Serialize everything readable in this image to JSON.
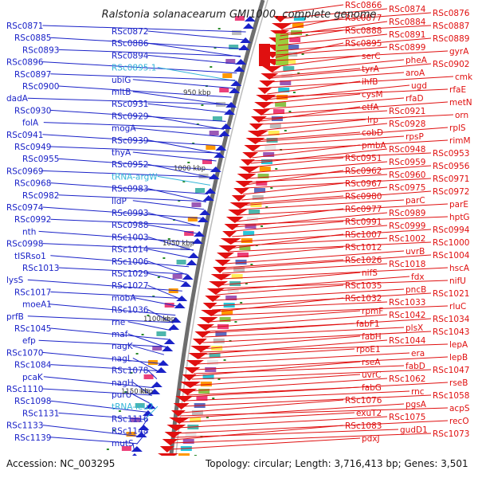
{
  "title": "Ralstonia solanacearum GMI1000, complete genome",
  "footer": {
    "accession": "Accession: NC_003295",
    "summary": "Topology: circular; Length: 3,716,413 bp; Genes: 3,501"
  },
  "colors": {
    "left_gene": "#1a22c8",
    "left_rna": "#33b5d8",
    "right_gene": "#e01010",
    "axis": "#8a8a8a",
    "tick_dot": "#2a8a2a"
  },
  "scale_labels": [
    "950 kbp",
    "1000 kbp",
    "1050 kbp",
    "1100 kbp",
    "1150 kbp"
  ],
  "left_labels": [
    "RSc0871",
    "RSc0872",
    "RSc0885",
    "RSc0886",
    "RSc0893",
    "RSc0894",
    "RSc0896",
    "RSc0895.1",
    "RSc0897",
    "ubiG",
    "RSc0900",
    "mltB",
    "dadA",
    "RSc0931",
    "RSc0930",
    "RSc0929",
    "folA",
    "mogA",
    "RSc0941",
    "RSc0939",
    "RSc0949",
    "thyA",
    "RSc0955",
    "RSc0952",
    "RSc0969",
    "tRNA-argW",
    "RSc0968",
    "RSc0983",
    "RSc0982",
    "lldP",
    "RSc0974",
    "RSc0993",
    "RSc0992",
    "RSc0988",
    "nth",
    "RSc1003",
    "RSc0998",
    "RSc1014",
    "tISRso1",
    "RSc1006",
    "RSc1013",
    "RSc1029",
    "lysS",
    "RSc1027",
    "RSc1017",
    "mobA",
    "moeA1",
    "RSc1036",
    "prfB",
    "rne",
    "RSc1045",
    "maf",
    "efp",
    "nagK",
    "RSc1070",
    "nagL",
    "RSc1084",
    "RSc1078",
    "pcaK",
    "nagH",
    "RSc1110",
    "purU",
    "RSc1098",
    "tRNA-leu2",
    "RSc1131",
    "RSc1116",
    "RSc1133",
    "RSc1148",
    "RSc1139",
    "mutS"
  ],
  "right_labels": [
    "RSc0866",
    "RSc0874",
    "RSc0876",
    "RSc0877",
    "RSc0884",
    "RSc0887",
    "RSc0888",
    "RSc0891",
    "RSc0889",
    "RSc0895",
    "RSc0899",
    "gyrA",
    "serC",
    "pheA",
    "RSc0902",
    "tyrA",
    "aroA",
    "cmk",
    "ihfB",
    "ugd",
    "rfaE",
    "cysM",
    "rfaD",
    "metN",
    "etfA",
    "RSc0921",
    "orn",
    "lrp",
    "RSc0928",
    "rplS",
    "cobD",
    "rpsP",
    "rimM",
    "pmbA",
    "RSc0948",
    "RSc0953",
    "RSc0951",
    "RSc0959",
    "RSc0956",
    "RSc0962",
    "RSc0960",
    "RSc0971",
    "RSc0967",
    "RSc0975",
    "RSc0972",
    "RSc0980",
    "parC",
    "parE",
    "RSc0977",
    "RSc0989",
    "hptG",
    "RSc0991",
    "RSc0999",
    "RSc0994",
    "RSc1007",
    "RSc1002",
    "RSc1000",
    "RSc1012",
    "uvrB",
    "RSc1004",
    "RSc1026",
    "RSc1018",
    "hscA",
    "nifS",
    "fdx",
    "nifU",
    "RSc1035",
    "pncB",
    "RSc1021",
    "RSc1032",
    "RSc1033",
    "rluC",
    "rpmF",
    "RSc1042",
    "RSc1034",
    "fabF1",
    "plsX",
    "RSc1043",
    "fabH",
    "RSc1044",
    "lepA",
    "rpoE1",
    "era",
    "lepB",
    "rseA",
    "fabD",
    "RSc1047",
    "uvrC",
    "RSc1062",
    "rseB",
    "fabG",
    "rnc",
    "RSc1058",
    "RSc1076",
    "pgsA",
    "acpS",
    "exuT2",
    "RSc1075",
    "recO",
    "RSc1083",
    "gudD1",
    "RSc1073",
    "pdxJ"
  ]
}
